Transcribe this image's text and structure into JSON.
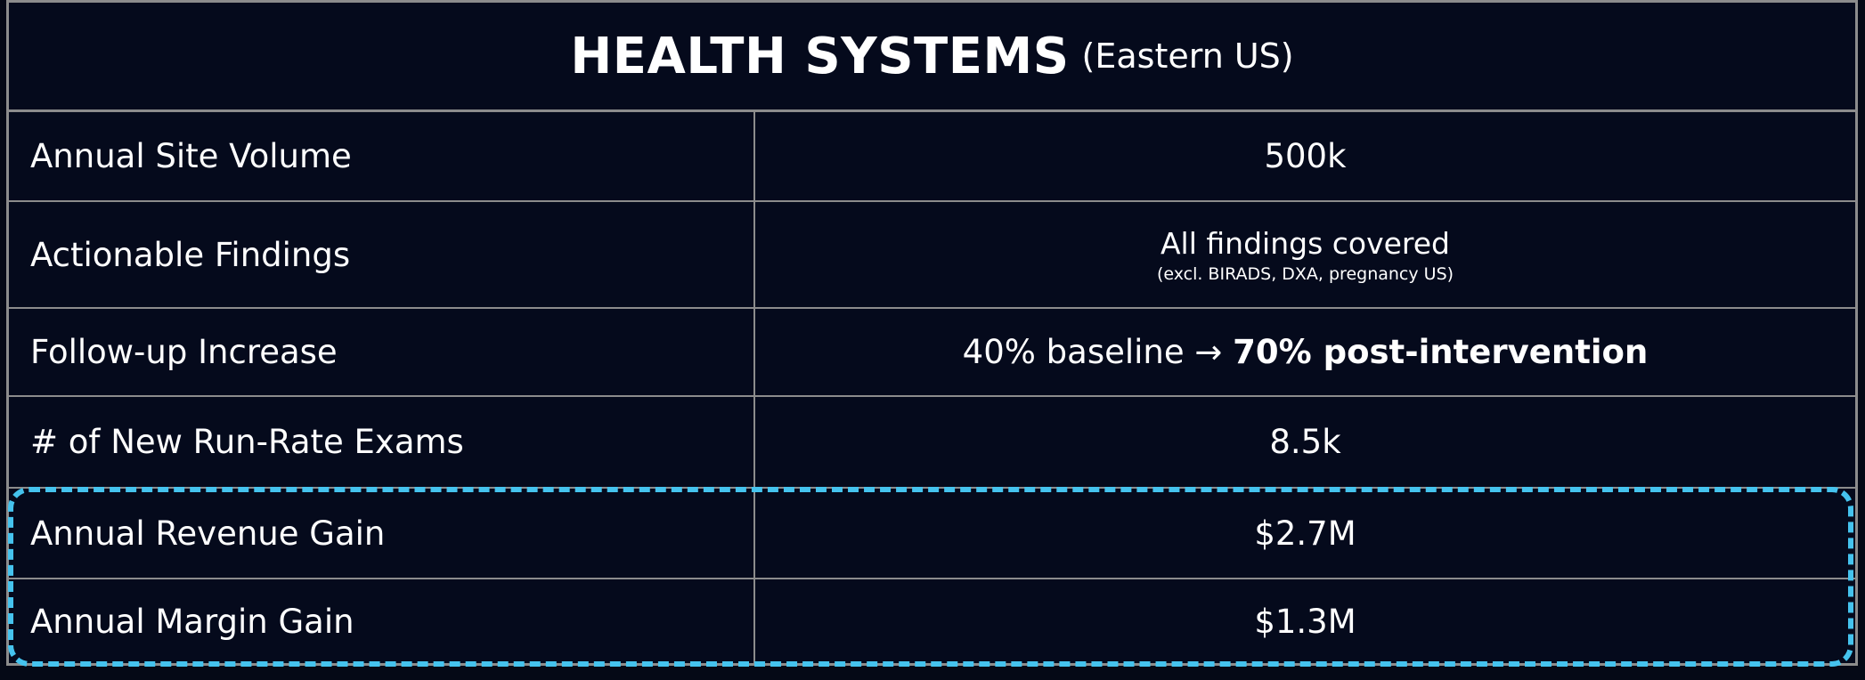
{
  "header": {
    "title": "HEALTH SYSTEMS",
    "subtitle": "(Eastern US)"
  },
  "table": {
    "rows": [
      {
        "label": "Annual Site Volume",
        "value": "500k"
      },
      {
        "label": "Actionable Findings",
        "value": "All findings covered",
        "note": "(excl. BIRADS, DXA, pregnancy US)"
      },
      {
        "label": "Follow-up Increase",
        "value": "40% baseline →",
        "emphasis": "70% post-intervention"
      },
      {
        "label": "# of New Run-Rate Exams",
        "value": "8.5k"
      },
      {
        "label": "Annual Revenue Gain",
        "value": "$2.7M"
      },
      {
        "label": "Annual Margin Gain",
        "value": "$1.3M"
      }
    ]
  }
}
